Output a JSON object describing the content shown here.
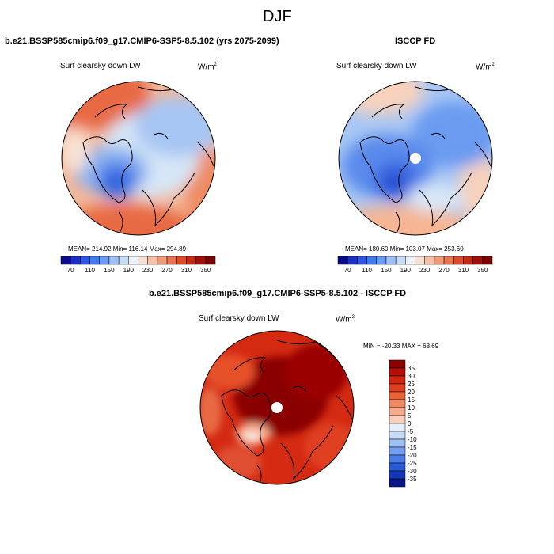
{
  "season": "DJF",
  "left": {
    "case_title": "b.e21.BSSP585cmip6.f09_g17.CMIP6-SSP5-8.5.102 (yrs 2075-2099)",
    "variable": "Surf clearsky down LW",
    "units": "W/m",
    "units_exp": "2",
    "stats": "MEAN= 214.92  Min= 116.14  Max= 294.89"
  },
  "right": {
    "case_title": "ISCCP FD",
    "variable": "Surf clearsky down LW",
    "units": "W/m",
    "units_exp": "2",
    "stats": "MEAN= 180.60  Min= 103.07  Max= 253.60"
  },
  "diff": {
    "case_title": "b.e21.BSSP585cmip6.f09_g17.CMIP6-SSP5-8.5.102 - ISCCP FD",
    "variable": "Surf clearsky down LW",
    "units": "W/m",
    "units_exp": "2",
    "minmax": "MIN = -20.33 MAX =  68.69"
  },
  "colorbar_abs": {
    "labels": [
      "70",
      "110",
      "150",
      "190",
      "230",
      "270",
      "310",
      "350"
    ],
    "colors": [
      "#0a0a8c",
      "#1a2fc8",
      "#2d55e6",
      "#3f78f0",
      "#6a9bf5",
      "#9cc0f7",
      "#c6dcf5",
      "#eef2fb",
      "#f8e0d4",
      "#f7c0a4",
      "#f09a78",
      "#ea7350",
      "#e04a28",
      "#c72a12",
      "#a0100a",
      "#7a0505"
    ]
  },
  "colorbar_diff": {
    "labels": [
      "35",
      "30",
      "25",
      "20",
      "15",
      "10",
      "5",
      "0",
      "-5",
      "-10",
      "-15",
      "-20",
      "-25",
      "-30",
      "-35"
    ],
    "colors": [
      "#8a0202",
      "#b50e06",
      "#d02510",
      "#e04020",
      "#ea6238",
      "#f28860",
      "#f6ab8c",
      "#f9cfbb",
      "#e5eefa",
      "#c7dbf7",
      "#9fc0f4",
      "#739ef0",
      "#4a7ce8",
      "#2a59d8",
      "#1636b8",
      "#08168a"
    ]
  }
}
